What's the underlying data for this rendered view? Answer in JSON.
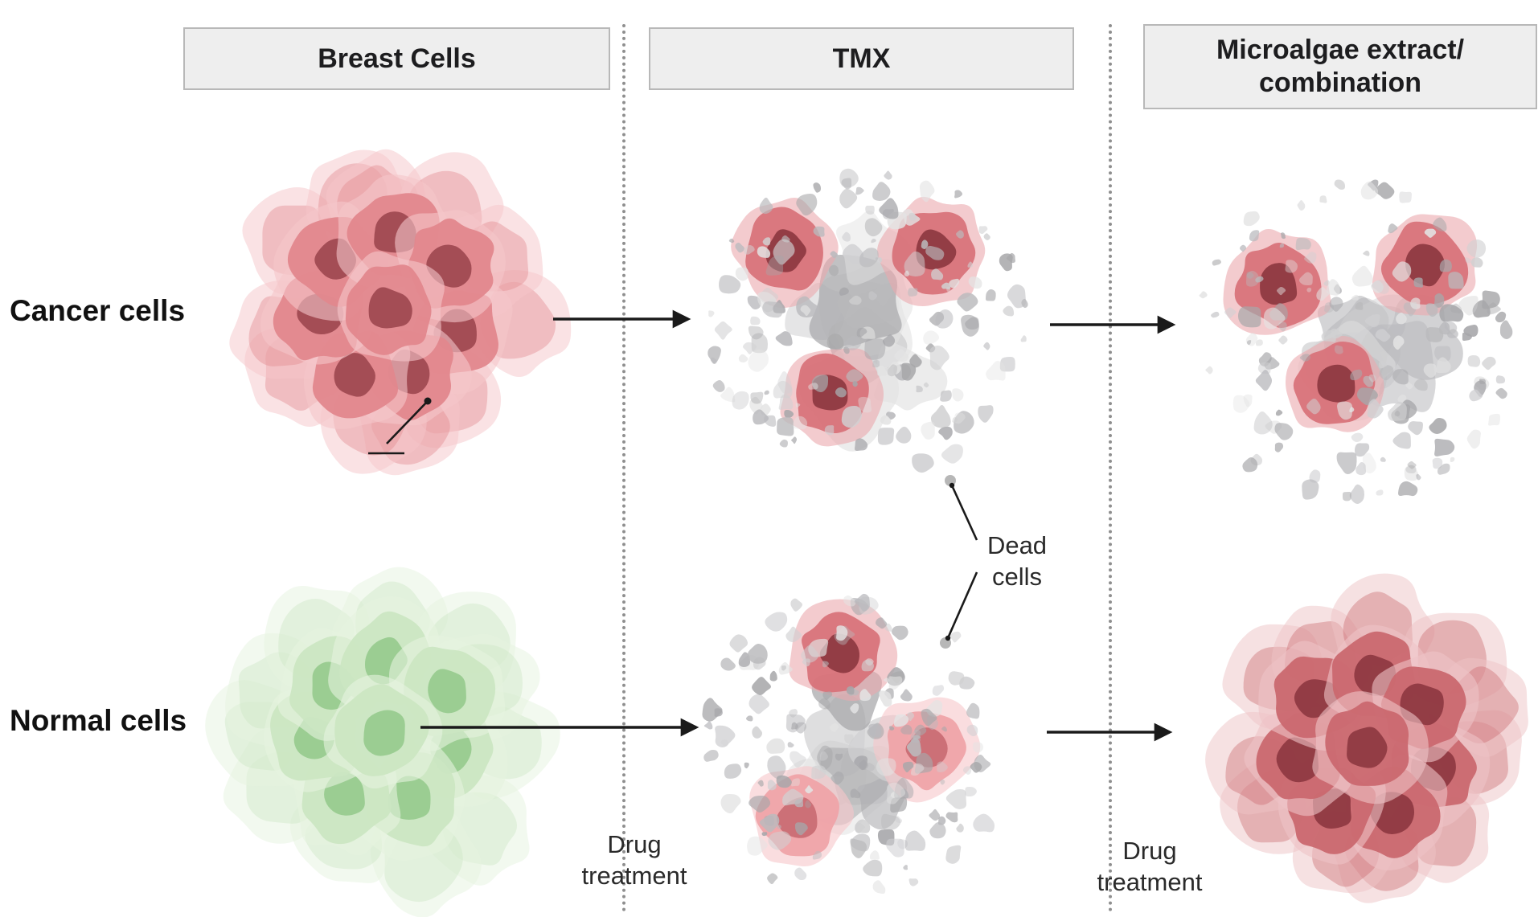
{
  "figure": {
    "columns": [
      {
        "label": "Breast Cells"
      },
      {
        "label": "TMX"
      },
      {
        "label": "Microalgae extract/\ncombination"
      }
    ],
    "rows": [
      {
        "label": "Cancer cells"
      },
      {
        "label": "Normal cells"
      }
    ],
    "annotations": {
      "dead_cells": "Dead\ncells",
      "drug_treatment_left": "Drug\ntreatment",
      "drug_treatment_right": "Drug\ntreatment"
    }
  },
  "colors": {
    "header_bg": "#eeeeee",
    "header_border": "#b8b8b8",
    "text": "#1d1d1f",
    "annotation_text": "#2a2a2a",
    "arrow": "#1a1a1a",
    "dotted_line": "#8f8f8f",
    "cancer": {
      "halo": "#f5c6ca",
      "body": "#e2878d",
      "nucleus": "#a04a52"
    },
    "surviving": {
      "halo": "#eba9ad",
      "body": "#d8737a",
      "nucleus": "#8f3a42"
    },
    "pink": {
      "halo": "#f7c6c9",
      "body": "#efa3a8",
      "nucleus": "#c96d74"
    },
    "normal": {
      "halo": "#e6f3e0",
      "body": "#cbe6c2",
      "nucleus": "#98cb8f"
    },
    "healthy_final": {
      "halo": "#eec3c6",
      "body": "#ca686f",
      "nucleus": "#8f3a42"
    },
    "debris_greys": [
      "#e3e3e3",
      "#d0d0d2",
      "#bababd",
      "#a7a7aa"
    ]
  }
}
